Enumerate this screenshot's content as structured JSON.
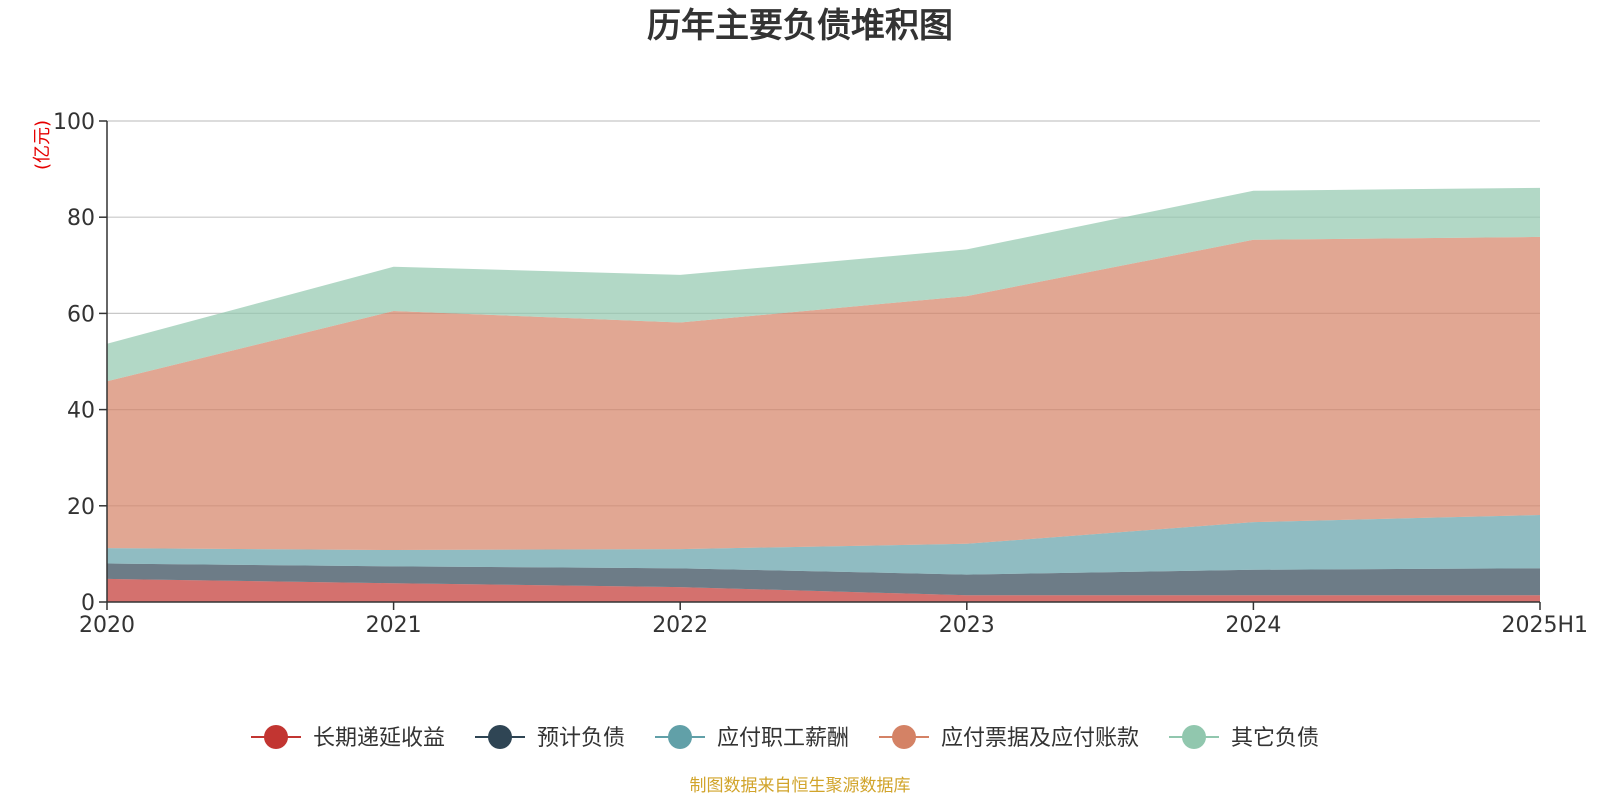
{
  "chart_data": {
    "type": "area",
    "stacked": true,
    "title": "历年主要负债堆积图",
    "unit_label": "(亿元)",
    "x": [
      "2020",
      "2021",
      "2022",
      "2023",
      "2024",
      "2025H1"
    ],
    "ylim": [
      0,
      100
    ],
    "yticks": [
      0,
      20,
      40,
      60,
      80,
      100
    ],
    "grid": true,
    "legend_position": "bottom",
    "series": [
      {
        "name": "长期递延收益",
        "color": "#c23531",
        "values": [
          4.8,
          3.9,
          3.1,
          1.4,
          1.4,
          1.4
        ]
      },
      {
        "name": "预计负债",
        "color": "#2f4554",
        "values": [
          3.2,
          3.5,
          3.9,
          4.3,
          5.3,
          5.6
        ]
      },
      {
        "name": "应付职工薪酬",
        "color": "#61a0a8",
        "values": [
          3.2,
          3.4,
          4.0,
          6.4,
          9.9,
          11.1
        ]
      },
      {
        "name": "应付票据及应付账款",
        "color": "#d48265",
        "values": [
          34.7,
          49.7,
          47.1,
          51.5,
          58.7,
          57.8
        ]
      },
      {
        "name": "其它负债",
        "color": "#91c7ae",
        "values": [
          7.8,
          9.2,
          9.9,
          9.7,
          10.2,
          10.2
        ]
      }
    ]
  },
  "source_note": "制图数据来自恒生聚源数据库"
}
